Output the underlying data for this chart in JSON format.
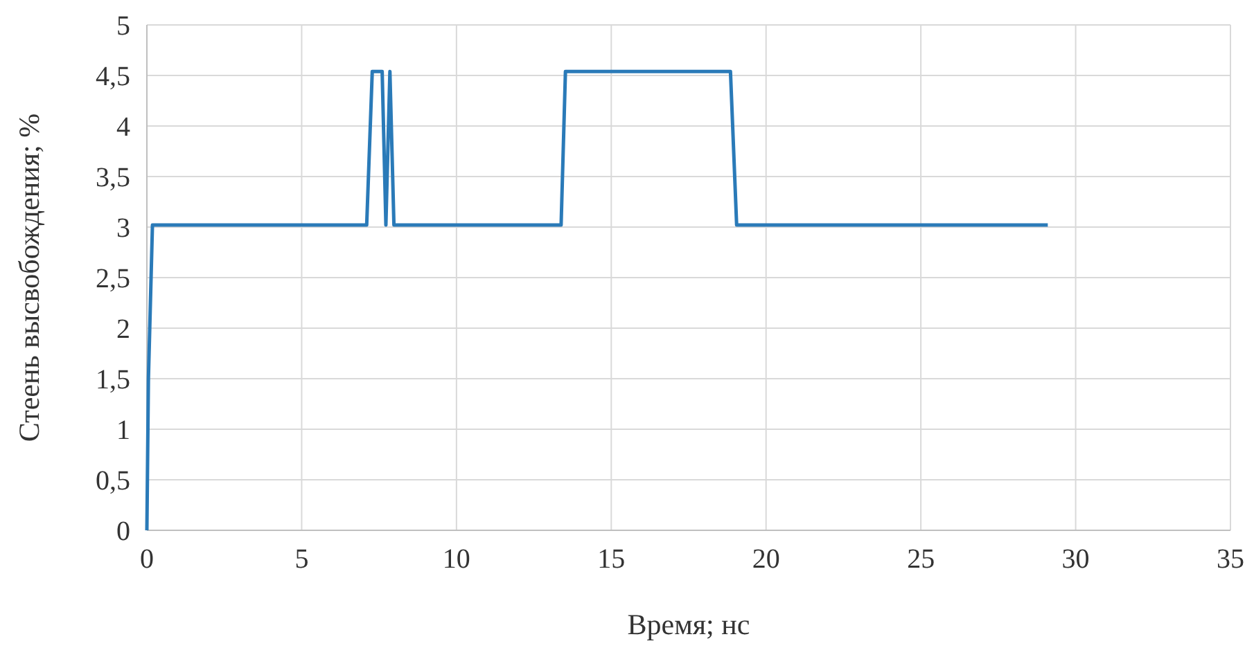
{
  "chart_data": {
    "type": "line",
    "xlabel": "Время; нс",
    "ylabel": "Стеень высвобождения; %",
    "x": [
      0,
      0.05,
      0.18,
      7.1,
      7.28,
      7.6,
      7.72,
      7.85,
      7.98,
      13.38,
      13.52,
      18.85,
      19.05,
      29.1
    ],
    "series": [
      {
        "color": "#2a7ab8",
        "values": [
          0,
          1.5,
          3.02,
          3.02,
          4.54,
          4.54,
          3.02,
          4.54,
          3.02,
          3.02,
          4.54,
          4.54,
          3.02,
          3.02
        ]
      }
    ],
    "xlim": [
      0,
      35
    ],
    "xticks": [
      0,
      5,
      10,
      15,
      20,
      25,
      30,
      35
    ],
    "ylim": [
      0,
      5
    ],
    "yticks": [
      0,
      {
        "value": 0.5,
        "label": "0,5"
      },
      1,
      {
        "value": 1.5,
        "label": "1,5"
      },
      2,
      {
        "value": 2.5,
        "label": "2,5"
      },
      3,
      {
        "value": 3.5,
        "label": "3,5"
      },
      4,
      {
        "value": 4.5,
        "label": "4,5"
      },
      5
    ],
    "grid": true,
    "marker": "none",
    "line_style": "solid"
  }
}
